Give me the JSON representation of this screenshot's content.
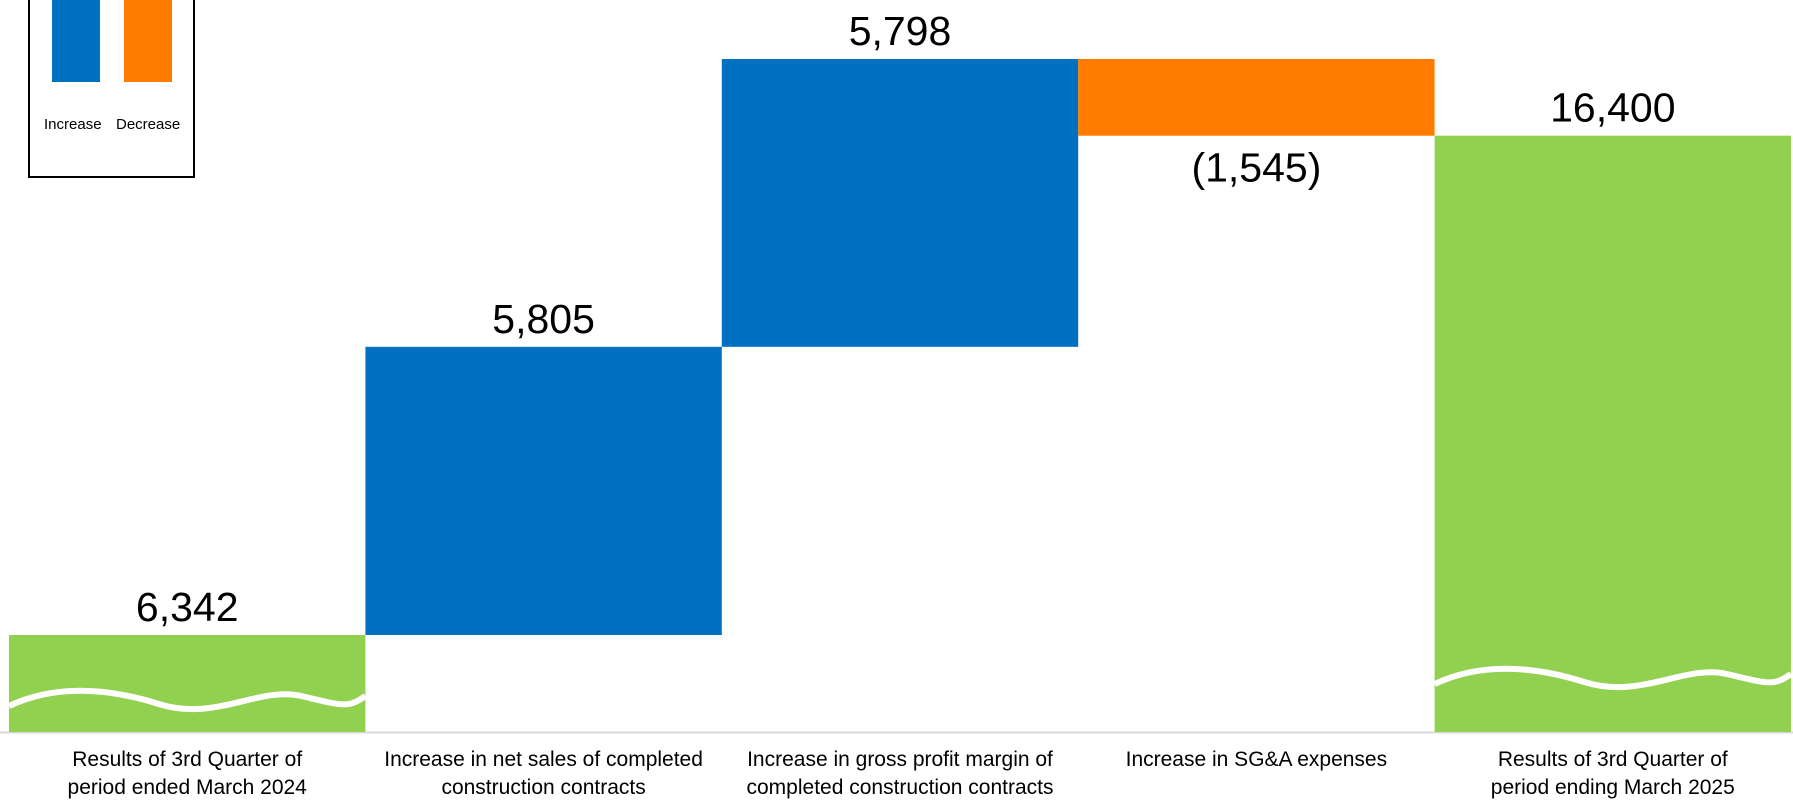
{
  "legend": {
    "increase_label": "Increase",
    "decrease_label": "Decrease"
  },
  "colors": {
    "increase": "#0070C0",
    "decrease": "#FF7C00",
    "total": "#92D050",
    "baseline": "#D9D9D9"
  },
  "chart_data": {
    "type": "bar",
    "subtype": "waterfall",
    "categories": [
      [
        "Results of 3rd Quarter of",
        "period ended March 2024"
      ],
      [
        "Increase in net sales of completed",
        "construction contracts"
      ],
      [
        "Increase in gross profit margin of",
        "completed construction contracts"
      ],
      [
        "Increase in SG&A expenses"
      ],
      [
        "Results of 3rd Quarter of",
        "period ending March 2025"
      ]
    ],
    "steps": [
      {
        "kind": "total",
        "value": 6342,
        "label": "6,342"
      },
      {
        "kind": "increase",
        "value": 5805,
        "label": "5,805"
      },
      {
        "kind": "increase",
        "value": 5798,
        "label": "5,798"
      },
      {
        "kind": "decrease",
        "value": -1545,
        "label": "(1,545)"
      },
      {
        "kind": "total",
        "value": 16400,
        "label": "16,400"
      }
    ],
    "axis_break": true,
    "grid": false,
    "legend_position": "top-left"
  }
}
